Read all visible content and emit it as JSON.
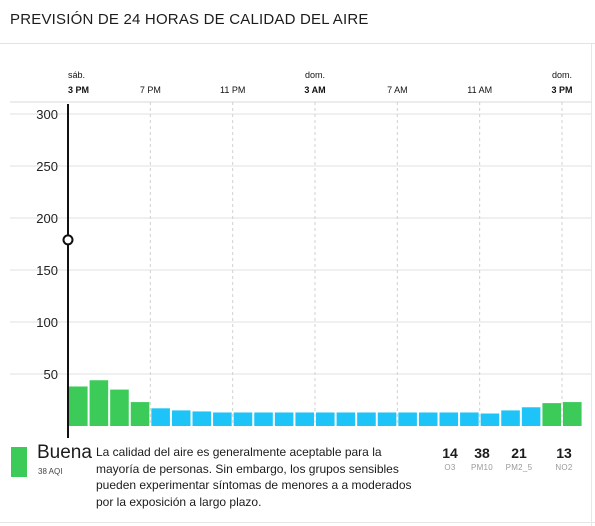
{
  "header": {
    "title": "PREVISIÓN DE 24 HORAS DE CALIDAD DEL AIRE"
  },
  "chart_data": {
    "type": "bar",
    "title": "",
    "xlabel": "",
    "ylabel": "",
    "y_ticks": [
      50,
      100,
      150,
      200,
      250,
      300
    ],
    "ylim": [
      0,
      300
    ],
    "x_ticks": [
      {
        "day": "sáb.",
        "hour": "3 PM",
        "bold": true
      },
      {
        "day": "",
        "hour": "7 PM",
        "bold": false
      },
      {
        "day": "",
        "hour": "11 PM",
        "bold": false
      },
      {
        "day": "dom.",
        "hour": "3 AM",
        "bold": true
      },
      {
        "day": "",
        "hour": "7 AM",
        "bold": false
      },
      {
        "day": "",
        "hour": "11 AM",
        "bold": false
      },
      {
        "day": "dom.",
        "hour": "3 PM",
        "bold": true
      }
    ],
    "grid": true,
    "current_marker_value": 179,
    "values": [
      38,
      44,
      35,
      23,
      17,
      15,
      14,
      13,
      13,
      13,
      13,
      13,
      13,
      13,
      13,
      13,
      13,
      13,
      13,
      13,
      12,
      15,
      18,
      22,
      23
    ],
    "colors": {
      "good": "#3ccb59",
      "moderate_low": "#1ec3f7"
    },
    "bar_categories": [
      "good",
      "good",
      "good",
      "good",
      "moderate_low",
      "moderate_low",
      "moderate_low",
      "moderate_low",
      "moderate_low",
      "moderate_low",
      "moderate_low",
      "moderate_low",
      "moderate_low",
      "moderate_low",
      "moderate_low",
      "moderate_low",
      "moderate_low",
      "moderate_low",
      "moderate_low",
      "moderate_low",
      "moderate_low",
      "moderate_low",
      "moderate_low",
      "good",
      "good"
    ]
  },
  "summary": {
    "category": "Buena",
    "aqi_sub": "38 AQI",
    "color": "#3ccb59",
    "description": "La calidad del aire es generalmente aceptable para la mayoría de personas. Sin embargo, los grupos sensibles pueden experimentar síntomas de menores a a moderados por la exposición a largo plazo.",
    "pollutants": [
      {
        "value": "14",
        "name": "O3"
      },
      {
        "value": "38",
        "name": "PM10"
      },
      {
        "value": "21",
        "name": "PM2_5"
      },
      {
        "value": "13",
        "name": "NO2"
      }
    ]
  }
}
